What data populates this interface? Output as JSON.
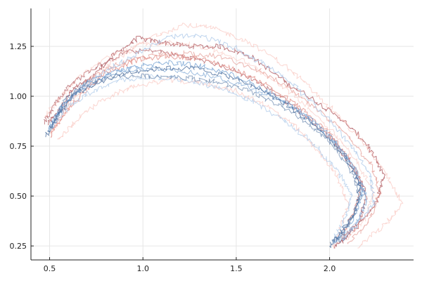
{
  "chart_data": {
    "type": "line",
    "title": "",
    "xlabel": "",
    "ylabel": "",
    "xlim": [
      0.4,
      2.45
    ],
    "ylim": [
      0.18,
      1.44
    ],
    "grid": true,
    "legend": "none",
    "x_ticks": [
      {
        "value": 0.5,
        "label": "0.5"
      },
      {
        "value": 1.0,
        "label": "1.0"
      },
      {
        "value": 1.5,
        "label": "1.5"
      },
      {
        "value": 2.0,
        "label": "2.0"
      }
    ],
    "y_ticks": [
      {
        "value": 0.25,
        "label": "0.25"
      },
      {
        "value": 0.5,
        "label": "0.50"
      },
      {
        "value": 0.75,
        "label": "0.75"
      },
      {
        "value": 1.0,
        "label": "1.00"
      },
      {
        "value": 1.25,
        "label": "1.25"
      }
    ],
    "colors": {
      "dark_red": "#b5646a",
      "red": "#e0877f",
      "light_red": "#f7b7ad",
      "light_blue": "#a9c7e8",
      "blue": "#6f9dd0",
      "dark_blue": "#4d6f9e"
    },
    "series": [
      {
        "color": "dark_red",
        "opacity": 0.85,
        "points": [
          [
            0.49,
            0.86
          ],
          [
            0.55,
            0.93
          ],
          [
            0.62,
            1.03
          ],
          [
            0.72,
            1.09
          ],
          [
            0.85,
            1.21
          ],
          [
            0.97,
            1.29
          ],
          [
            1.1,
            1.27
          ],
          [
            1.25,
            1.25
          ],
          [
            1.42,
            1.25
          ],
          [
            1.58,
            1.2
          ],
          [
            1.75,
            1.08
          ],
          [
            1.92,
            0.98
          ],
          [
            2.07,
            0.88
          ],
          [
            2.2,
            0.76
          ],
          [
            2.29,
            0.6
          ],
          [
            2.25,
            0.47
          ],
          [
            2.13,
            0.33
          ],
          [
            2.03,
            0.24
          ]
        ]
      },
      {
        "color": "dark_red",
        "opacity": 0.75,
        "points": [
          [
            0.47,
            0.87
          ],
          [
            0.53,
            0.96
          ],
          [
            0.61,
            1.06
          ],
          [
            0.74,
            1.14
          ],
          [
            0.9,
            1.22
          ],
          [
            1.05,
            1.23
          ],
          [
            1.22,
            1.2
          ],
          [
            1.4,
            1.16
          ],
          [
            1.58,
            1.09
          ],
          [
            1.75,
            0.99
          ],
          [
            1.9,
            0.88
          ],
          [
            2.03,
            0.77
          ],
          [
            2.13,
            0.64
          ],
          [
            2.2,
            0.5
          ],
          [
            2.16,
            0.38
          ],
          [
            2.05,
            0.27
          ]
        ]
      },
      {
        "color": "red",
        "opacity": 0.75,
        "points": [
          [
            0.5,
            0.8
          ],
          [
            0.57,
            0.9
          ],
          [
            0.66,
            1.0
          ],
          [
            0.8,
            1.12
          ],
          [
            0.96,
            1.18
          ],
          [
            1.12,
            1.2
          ],
          [
            1.3,
            1.19
          ],
          [
            1.48,
            1.14
          ],
          [
            1.66,
            1.06
          ],
          [
            1.83,
            0.95
          ],
          [
            1.98,
            0.83
          ],
          [
            2.1,
            0.7
          ],
          [
            2.18,
            0.55
          ],
          [
            2.12,
            0.4
          ],
          [
            2.06,
            0.3
          ]
        ]
      },
      {
        "color": "red",
        "opacity": 0.6,
        "points": [
          [
            0.52,
            0.83
          ],
          [
            0.6,
            0.97
          ],
          [
            0.7,
            1.08
          ],
          [
            0.86,
            1.16
          ],
          [
            1.03,
            1.2
          ],
          [
            1.22,
            1.22
          ],
          [
            1.4,
            1.2
          ],
          [
            1.6,
            1.14
          ],
          [
            1.78,
            1.04
          ],
          [
            1.95,
            0.92
          ],
          [
            2.1,
            0.8
          ],
          [
            2.22,
            0.66
          ],
          [
            2.27,
            0.52
          ],
          [
            2.21,
            0.37
          ],
          [
            2.1,
            0.26
          ]
        ]
      },
      {
        "color": "light_red",
        "opacity": 0.55,
        "points": [
          [
            0.5,
            0.82
          ],
          [
            0.58,
            0.92
          ],
          [
            0.7,
            1.06
          ],
          [
            0.88,
            1.2
          ],
          [
            1.05,
            1.3
          ],
          [
            1.22,
            1.36
          ],
          [
            1.38,
            1.34
          ],
          [
            1.55,
            1.28
          ],
          [
            1.72,
            1.18
          ],
          [
            1.88,
            1.06
          ],
          [
            2.03,
            0.92
          ],
          [
            2.17,
            0.78
          ],
          [
            2.3,
            0.62
          ],
          [
            2.39,
            0.46
          ],
          [
            2.3,
            0.36
          ],
          [
            2.15,
            0.24
          ]
        ]
      },
      {
        "color": "light_red",
        "opacity": 0.55,
        "points": [
          [
            0.55,
            0.78
          ],
          [
            0.64,
            0.88
          ],
          [
            0.78,
            0.98
          ],
          [
            0.95,
            1.05
          ],
          [
            1.12,
            1.08
          ],
          [
            1.3,
            1.07
          ],
          [
            1.48,
            1.03
          ],
          [
            1.65,
            0.96
          ],
          [
            1.8,
            0.86
          ],
          [
            1.93,
            0.74
          ],
          [
            2.04,
            0.6
          ],
          [
            2.1,
            0.46
          ],
          [
            2.06,
            0.34
          ],
          [
            2.02,
            0.24
          ]
        ]
      },
      {
        "color": "light_red",
        "opacity": 0.5,
        "points": [
          [
            0.48,
            0.9
          ],
          [
            0.56,
            1.0
          ],
          [
            0.66,
            1.1
          ],
          [
            0.82,
            1.2
          ],
          [
            1.0,
            1.26
          ],
          [
            1.18,
            1.27
          ],
          [
            1.36,
            1.24
          ],
          [
            1.55,
            1.17
          ],
          [
            1.72,
            1.07
          ],
          [
            1.88,
            0.95
          ],
          [
            2.02,
            0.82
          ],
          [
            2.14,
            0.68
          ],
          [
            2.24,
            0.52
          ],
          [
            2.19,
            0.38
          ],
          [
            2.08,
            0.28
          ]
        ]
      },
      {
        "color": "light_blue",
        "opacity": 0.75,
        "points": [
          [
            0.5,
            0.85
          ],
          [
            0.57,
            0.95
          ],
          [
            0.67,
            1.05
          ],
          [
            0.82,
            1.14
          ],
          [
            0.98,
            1.22
          ],
          [
            1.15,
            1.3
          ],
          [
            1.32,
            1.3
          ],
          [
            1.5,
            1.24
          ],
          [
            1.67,
            1.15
          ],
          [
            1.84,
            1.03
          ],
          [
            1.99,
            0.89
          ],
          [
            2.12,
            0.75
          ],
          [
            2.22,
            0.6
          ],
          [
            2.24,
            0.46
          ],
          [
            2.14,
            0.36
          ],
          [
            2.03,
            0.27
          ]
        ]
      },
      {
        "color": "light_blue",
        "opacity": 0.7,
        "points": [
          [
            0.52,
            0.86
          ],
          [
            0.6,
            0.95
          ],
          [
            0.72,
            1.02
          ],
          [
            0.88,
            1.08
          ],
          [
            1.05,
            1.1
          ],
          [
            1.24,
            1.08
          ],
          [
            1.42,
            1.04
          ],
          [
            1.6,
            0.97
          ],
          [
            1.77,
            0.87
          ],
          [
            1.92,
            0.76
          ],
          [
            2.04,
            0.63
          ],
          [
            2.12,
            0.5
          ],
          [
            2.08,
            0.38
          ],
          [
            2.02,
            0.28
          ]
        ]
      },
      {
        "color": "blue",
        "opacity": 0.75,
        "points": [
          [
            0.49,
            0.82
          ],
          [
            0.56,
            0.94
          ],
          [
            0.66,
            1.03
          ],
          [
            0.8,
            1.1
          ],
          [
            0.96,
            1.15
          ],
          [
            1.14,
            1.17
          ],
          [
            1.32,
            1.15
          ],
          [
            1.5,
            1.1
          ],
          [
            1.68,
            1.02
          ],
          [
            1.85,
            0.92
          ],
          [
            2.0,
            0.8
          ],
          [
            2.12,
            0.66
          ],
          [
            2.18,
            0.52
          ],
          [
            2.12,
            0.38
          ],
          [
            2.02,
            0.26
          ]
        ]
      },
      {
        "color": "blue",
        "opacity": 0.65,
        "points": [
          [
            0.5,
            0.83
          ],
          [
            0.58,
            0.96
          ],
          [
            0.7,
            1.07
          ],
          [
            0.86,
            1.13
          ],
          [
            1.02,
            1.14
          ],
          [
            1.2,
            1.13
          ],
          [
            1.38,
            1.1
          ],
          [
            1.56,
            1.05
          ],
          [
            1.74,
            0.98
          ],
          [
            1.9,
            0.88
          ],
          [
            2.04,
            0.76
          ],
          [
            2.15,
            0.62
          ],
          [
            2.2,
            0.48
          ],
          [
            2.14,
            0.35
          ],
          [
            2.05,
            0.27
          ]
        ]
      },
      {
        "color": "dark_blue",
        "opacity": 0.8,
        "points": [
          [
            0.48,
            0.8
          ],
          [
            0.54,
            0.9
          ],
          [
            0.63,
            1.01
          ],
          [
            0.76,
            1.07
          ],
          [
            0.92,
            1.12
          ],
          [
            1.1,
            1.14
          ],
          [
            1.28,
            1.14
          ],
          [
            1.46,
            1.1
          ],
          [
            1.64,
            1.03
          ],
          [
            1.8,
            0.94
          ],
          [
            1.95,
            0.83
          ],
          [
            2.08,
            0.7
          ],
          [
            2.16,
            0.56
          ],
          [
            2.14,
            0.42
          ],
          [
            2.05,
            0.3
          ],
          [
            2.0,
            0.25
          ]
        ]
      },
      {
        "color": "dark_blue",
        "opacity": 0.6,
        "points": [
          [
            0.51,
            0.84
          ],
          [
            0.58,
            0.98
          ],
          [
            0.68,
            1.06
          ],
          [
            0.84,
            1.1
          ],
          [
            1.0,
            1.1
          ],
          [
            1.17,
            1.1
          ],
          [
            1.35,
            1.08
          ],
          [
            1.53,
            1.04
          ],
          [
            1.7,
            0.97
          ],
          [
            1.86,
            0.88
          ],
          [
            2.0,
            0.77
          ],
          [
            2.11,
            0.64
          ],
          [
            2.17,
            0.5
          ],
          [
            2.11,
            0.37
          ],
          [
            2.04,
            0.27
          ]
        ]
      }
    ]
  }
}
